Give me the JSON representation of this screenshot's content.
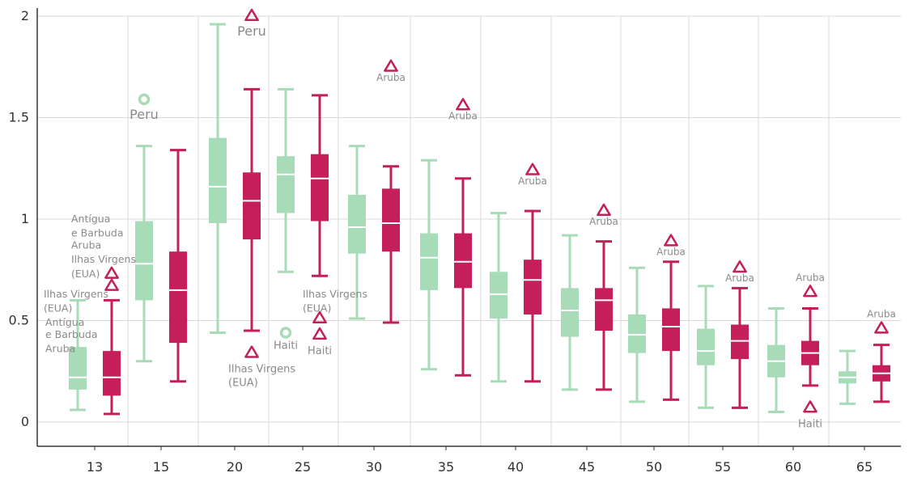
{
  "chart_data": {
    "type": "box",
    "categories": [
      "13",
      "15",
      "20",
      "25",
      "30",
      "35",
      "40",
      "45",
      "50",
      "55",
      "60",
      "65"
    ],
    "ylim": [
      -0.1,
      2.0
    ],
    "yticks": [
      0,
      0.5,
      1,
      1.5,
      2
    ],
    "ytick_labels": [
      "0",
      "0.5",
      "1",
      "1.5",
      "2"
    ],
    "grid": true,
    "colors": {
      "green": "#a8dbb7",
      "magenta": "#c41f5a",
      "grid": "#d9d9d9",
      "axis": "#333333"
    },
    "series": [
      {
        "color": "#a8dbb7",
        "boxes": [
          {
            "whislo": 0.06,
            "q1": 0.16,
            "med": 0.22,
            "q3": 0.37,
            "whishi": 0.6
          },
          {
            "whislo": 0.3,
            "q1": 0.6,
            "med": 0.78,
            "q3": 0.99,
            "whishi": 1.36
          },
          {
            "whislo": 0.44,
            "q1": 0.98,
            "med": 1.16,
            "q3": 1.4,
            "whishi": 1.96
          },
          {
            "whislo": 0.74,
            "q1": 1.03,
            "med": 1.22,
            "q3": 1.31,
            "whishi": 1.64
          },
          {
            "whislo": 0.51,
            "q1": 0.83,
            "med": 0.96,
            "q3": 1.12,
            "whishi": 1.36
          },
          {
            "whislo": 0.26,
            "q1": 0.65,
            "med": 0.81,
            "q3": 0.93,
            "whishi": 1.29
          },
          {
            "whislo": 0.2,
            "q1": 0.51,
            "med": 0.63,
            "q3": 0.74,
            "whishi": 1.03
          },
          {
            "whislo": 0.16,
            "q1": 0.42,
            "med": 0.55,
            "q3": 0.66,
            "whishi": 0.92
          },
          {
            "whislo": 0.1,
            "q1": 0.34,
            "med": 0.43,
            "q3": 0.53,
            "whishi": 0.76
          },
          {
            "whislo": 0.07,
            "q1": 0.28,
            "med": 0.35,
            "q3": 0.46,
            "whishi": 0.67
          },
          {
            "whislo": 0.05,
            "q1": 0.22,
            "med": 0.3,
            "q3": 0.38,
            "whishi": 0.56
          },
          {
            "whislo": 0.09,
            "q1": 0.19,
            "med": 0.22,
            "q3": 0.25,
            "whishi": 0.35
          }
        ]
      },
      {
        "color": "#c41f5a",
        "boxes": [
          {
            "whislo": 0.04,
            "q1": 0.13,
            "med": 0.22,
            "q3": 0.35,
            "whishi": 0.6
          },
          {
            "whislo": 0.2,
            "q1": 0.39,
            "med": 0.65,
            "q3": 0.84,
            "whishi": 1.34
          },
          {
            "whislo": 0.45,
            "q1": 0.9,
            "med": 1.09,
            "q3": 1.23,
            "whishi": 1.64
          },
          {
            "whislo": 0.72,
            "q1": 0.99,
            "med": 1.2,
            "q3": 1.32,
            "whishi": 1.61
          },
          {
            "whislo": 0.49,
            "q1": 0.84,
            "med": 0.98,
            "q3": 1.15,
            "whishi": 1.26
          },
          {
            "whislo": 0.23,
            "q1": 0.66,
            "med": 0.79,
            "q3": 0.93,
            "whishi": 1.2
          },
          {
            "whislo": 0.2,
            "q1": 0.53,
            "med": 0.7,
            "q3": 0.8,
            "whishi": 1.04
          },
          {
            "whislo": 0.16,
            "q1": 0.45,
            "med": 0.6,
            "q3": 0.66,
            "whishi": 0.89
          },
          {
            "whislo": 0.11,
            "q1": 0.35,
            "med": 0.47,
            "q3": 0.56,
            "whishi": 0.79
          },
          {
            "whislo": 0.07,
            "q1": 0.31,
            "med": 0.4,
            "q3": 0.48,
            "whishi": 0.66
          },
          {
            "whislo": 0.18,
            "q1": 0.28,
            "med": 0.34,
            "q3": 0.4,
            "whishi": 0.56
          },
          {
            "whislo": 0.1,
            "q1": 0.2,
            "med": 0.24,
            "q3": 0.28,
            "whishi": 0.38
          }
        ]
      }
    ],
    "outliers": [
      {
        "series": 0,
        "category": 1,
        "y": 1.59,
        "marker": "circle",
        "label": "Peru"
      },
      {
        "series": 0,
        "category": 3,
        "y": 0.44,
        "marker": "circle",
        "label": "Haiti"
      },
      {
        "series": 1,
        "category": 0,
        "y": 0.73,
        "marker": "triangle",
        "label": ""
      },
      {
        "series": 1,
        "category": 0,
        "y": 0.67,
        "marker": "triangle",
        "label": ""
      },
      {
        "series": 1,
        "category": 2,
        "y": 2.0,
        "marker": "triangle",
        "label": "Peru"
      },
      {
        "series": 1,
        "category": 2,
        "y": 0.34,
        "marker": "triangle",
        "label": "Ilhas Virgens (EUA)"
      },
      {
        "series": 1,
        "category": 3,
        "y": 0.51,
        "marker": "triangle",
        "label": ""
      },
      {
        "series": 1,
        "category": 3,
        "y": 0.43,
        "marker": "triangle",
        "label": "Haiti"
      },
      {
        "series": 1,
        "category": 4,
        "y": 1.75,
        "marker": "triangle",
        "label": "Aruba"
      },
      {
        "series": 1,
        "category": 5,
        "y": 1.56,
        "marker": "triangle",
        "label": "Aruba"
      },
      {
        "series": 1,
        "category": 6,
        "y": 1.24,
        "marker": "triangle",
        "label": "Aruba"
      },
      {
        "series": 1,
        "category": 7,
        "y": 1.04,
        "marker": "triangle",
        "label": "Aruba"
      },
      {
        "series": 1,
        "category": 8,
        "y": 0.89,
        "marker": "triangle",
        "label": "Aruba"
      },
      {
        "series": 1,
        "category": 9,
        "y": 0.76,
        "marker": "triangle",
        "label": "Aruba"
      },
      {
        "series": 1,
        "category": 10,
        "y": 0.64,
        "marker": "triangle",
        "label": "Aruba"
      },
      {
        "series": 1,
        "category": 10,
        "y": 0.07,
        "marker": "triangle",
        "label": "Haiti"
      },
      {
        "series": 1,
        "category": 11,
        "y": 0.46,
        "marker": "triangle",
        "label": "Aruba"
      }
    ],
    "annotations": [
      {
        "text": "Antígua",
        "category": 0,
        "y": 1.0
      },
      {
        "text": "e Barbuda",
        "category": 0,
        "y": 0.93
      },
      {
        "text": "Aruba",
        "category": 0,
        "y": 0.87
      },
      {
        "text": "Ilhas Virgens",
        "category": 0,
        "y": 0.8
      },
      {
        "text": "(EUA)",
        "category": 0,
        "y": 0.73
      },
      {
        "text": "Ilhas Virgens",
        "category": 0,
        "y": 0.63
      },
      {
        "text": "(EUA)",
        "category": 0,
        "y": 0.56
      },
      {
        "text": "Antígua",
        "category": 0,
        "y": 0.49
      },
      {
        "text": "e Barbuda",
        "category": 0,
        "y": 0.43
      },
      {
        "text": "Aruba",
        "category": 0,
        "y": 0.36
      },
      {
        "text": "Ilhas Virgens",
        "category": 3,
        "y": 0.63
      },
      {
        "text": "(EUA)",
        "category": 3,
        "y": 0.56
      }
    ]
  }
}
